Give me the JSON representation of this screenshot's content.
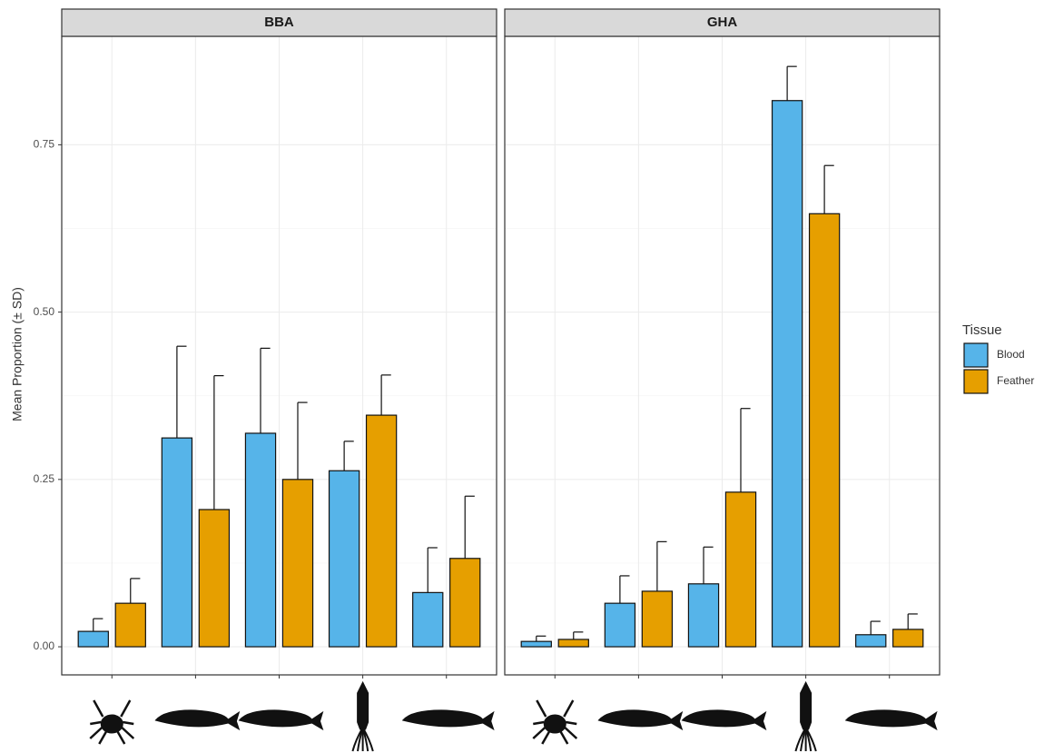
{
  "chart_data": [
    {
      "type": "bar",
      "title": "BBA",
      "ylabel": "Mean Proportion (± SD)",
      "legend_title": "Tissue",
      "categories": [
        null,
        null,
        null,
        null,
        null
      ],
      "series": [
        {
          "name": "Blood",
          "color": "#56B4E9",
          "values": [
            0.023,
            0.312,
            0.319,
            0.263,
            0.081
          ],
          "errors": [
            0.019,
            0.137,
            0.127,
            0.044,
            0.067
          ]
        },
        {
          "name": "Feather",
          "color": "#E69F00",
          "values": [
            0.065,
            0.205,
            0.25,
            0.346,
            0.132
          ],
          "errors": [
            0.037,
            0.2,
            0.115,
            0.06,
            0.093
          ]
        }
      ],
      "ylim": [
        -0.042,
        0.912
      ],
      "yticks": [
        {
          "value": 0,
          "label": "0.00"
        },
        0.25,
        {
          "value": 0.5,
          "label": "0.50"
        },
        0.75
      ],
      "grid": true
    },
    {
      "type": "bar",
      "title": "GHA",
      "categories": [
        null,
        null,
        null,
        null,
        null
      ],
      "series": [
        {
          "name": "Blood",
          "color": "#56B4E9",
          "values": [
            0.008,
            0.065,
            0.094,
            0.816,
            0.018
          ],
          "errors": [
            0.008,
            0.041,
            0.055,
            0.051,
            0.02
          ]
        },
        {
          "name": "Feather",
          "color": "#E69F00",
          "values": [
            0.011,
            0.083,
            0.231,
            0.647,
            0.026
          ],
          "errors": [
            0.011,
            0.074,
            0.125,
            0.072,
            0.023
          ]
        }
      ],
      "ylim": [
        -0.042,
        0.912
      ],
      "yticks": [
        {
          "value": 0,
          "label": "0.00"
        },
        0.25,
        {
          "value": 0.5,
          "label": "0.50"
        },
        0.75
      ],
      "grid": true
    }
  ]
}
